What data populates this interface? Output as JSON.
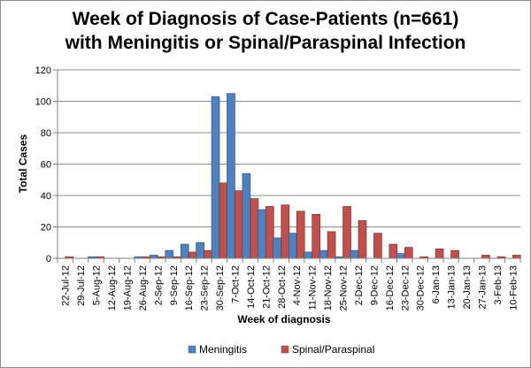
{
  "chart_data": {
    "type": "bar",
    "title_line1": "Week of Diagnosis of Case-Patients (n=661)",
    "title_line2": "with Meningitis or Spinal/Paraspinal Infection",
    "xlabel": "Week of diagnosis",
    "ylabel": "Total Cases",
    "ylim": [
      0,
      120
    ],
    "yticks": [
      0,
      20,
      40,
      60,
      80,
      100,
      120
    ],
    "grid": true,
    "legend_position": "bottom",
    "categories": [
      "22-Jul-12",
      "29-Jul-12",
      "5-Aug-12",
      "12-Aug-12",
      "19-Aug-12",
      "26-Aug-12",
      "2-Sep-12",
      "9-Sep-12",
      "16-Sep-12",
      "23-Sep-12",
      "30-Sep-12",
      "7-Oct-12",
      "14-Oct-12",
      "21-Oct-12",
      "28-Oct-12",
      "4-Nov-12",
      "11-Nov-12",
      "18-Nov-12",
      "25-Nov-12",
      "2-Dec-12",
      "9-Dec-12",
      "16-Dec-12",
      "23-Dec-12",
      "30-Dec-12",
      "6-Jan-13",
      "13-Jan-13",
      "20-Jan-13",
      "27-Jan-13",
      "3-Feb-13",
      "10-Feb-13"
    ],
    "series": [
      {
        "name": "Meningitis",
        "color": "#4f81bd",
        "values": [
          0,
          0,
          1,
          0,
          0,
          1,
          2,
          5,
          9,
          10,
          103,
          105,
          54,
          31,
          13,
          16,
          4,
          5,
          1,
          5,
          0,
          0,
          3,
          0,
          0,
          0,
          0,
          0,
          0,
          0
        ]
      },
      {
        "name": "Spinal/Paraspinal",
        "color": "#c0504d",
        "values": [
          1,
          0,
          1,
          0,
          0,
          1,
          1,
          1,
          4,
          5,
          48,
          43,
          38,
          33,
          34,
          30,
          28,
          17,
          33,
          24,
          16,
          9,
          7,
          1,
          6,
          5,
          0,
          2,
          1,
          2
        ]
      }
    ]
  }
}
